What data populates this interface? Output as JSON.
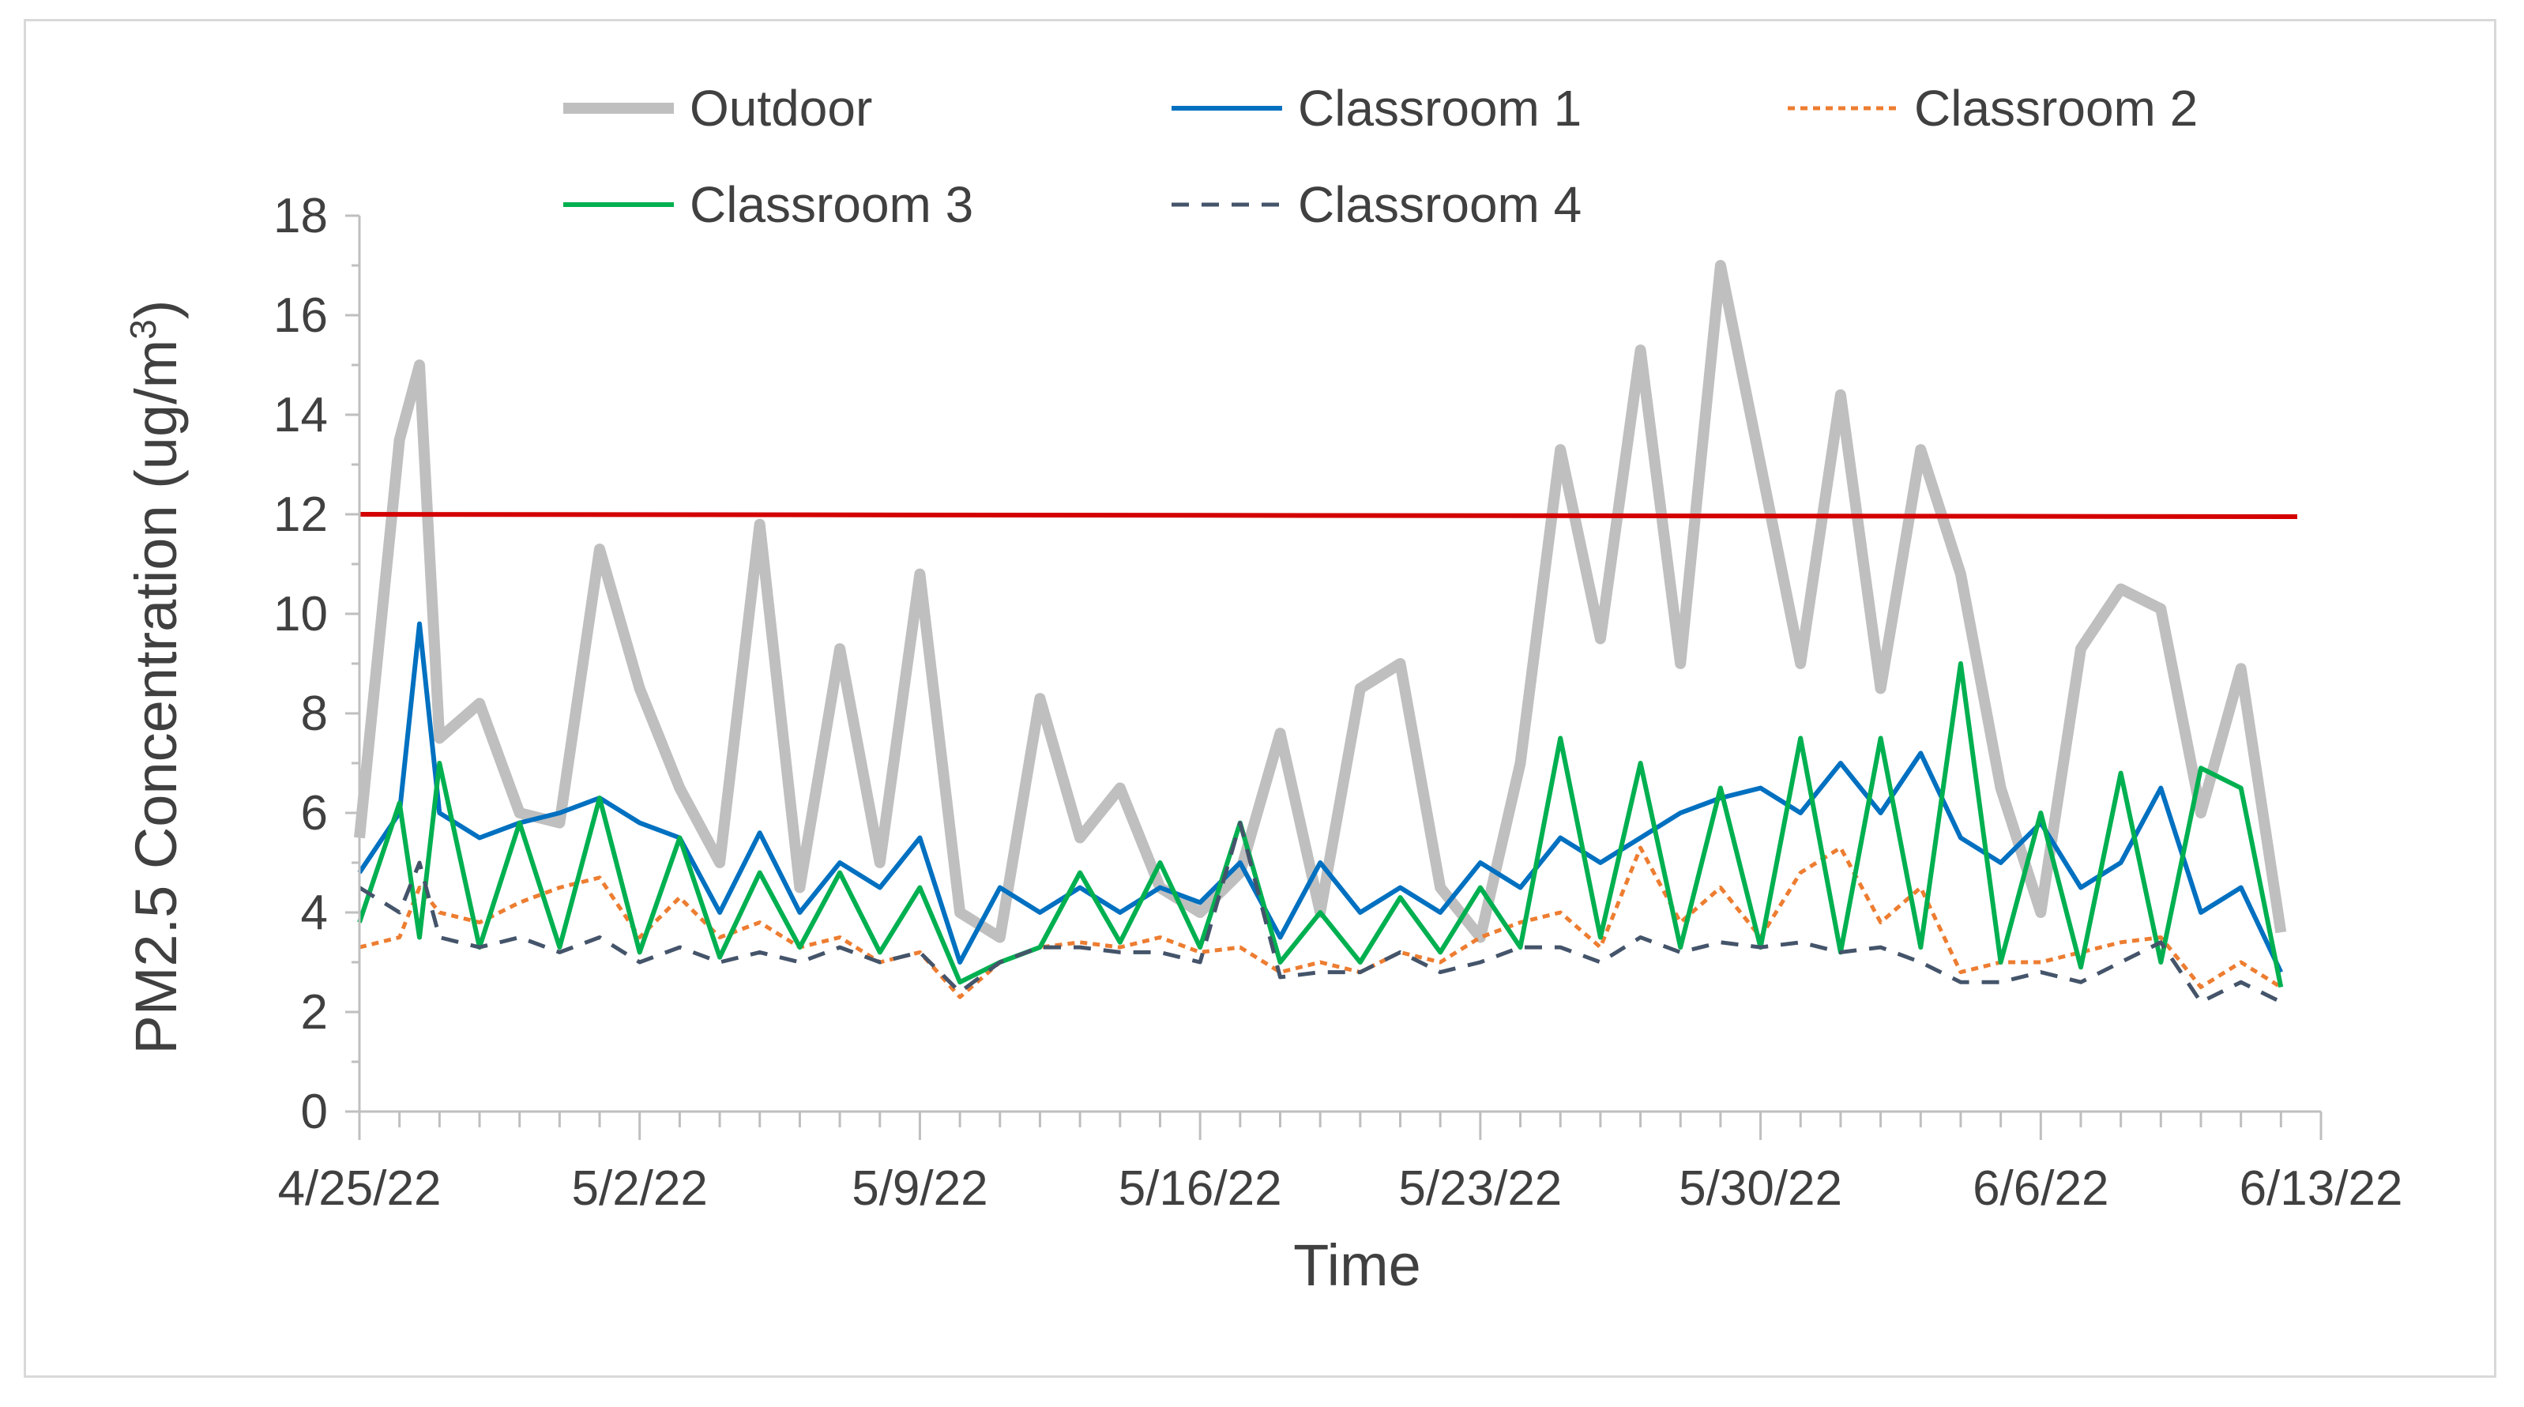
{
  "chart_data": {
    "type": "line",
    "xlabel": "Time",
    "ylabel": "PM2.5 Concentration (ug/m",
    "ylabel_superscript": "3",
    "ylabel_suffix": ")",
    "xlim": [
      "2022-04-25",
      "2022-06-13"
    ],
    "ylim": [
      0,
      18
    ],
    "x_ticks": [
      "4/25/22",
      "5/2/22",
      "5/9/22",
      "5/16/22",
      "5/23/22",
      "5/30/22",
      "6/6/22",
      "6/13/22"
    ],
    "y_ticks": [
      0,
      2,
      4,
      6,
      8,
      10,
      12,
      14,
      16,
      18
    ],
    "grid": false,
    "legend_position": "top",
    "reference_line": {
      "y": 12,
      "color": "#d40000"
    },
    "series": [
      {
        "name": "Outdoor",
        "color": "#bfbfbf",
        "style": "solid-thick",
        "points": [
          [
            "2022-04-25",
            5.5
          ],
          [
            "2022-04-26",
            13.5
          ],
          [
            "2022-04-26T12",
            15
          ],
          [
            "2022-04-27",
            7.5
          ],
          [
            "2022-04-28",
            8.2
          ],
          [
            "2022-04-29",
            6.0
          ],
          [
            "2022-04-30",
            5.8
          ],
          [
            "2022-05-01",
            11.3
          ],
          [
            "2022-05-02",
            8.5
          ],
          [
            "2022-05-03",
            6.5
          ],
          [
            "2022-05-04",
            5.0
          ],
          [
            "2022-05-05",
            11.8
          ],
          [
            "2022-05-06",
            4.5
          ],
          [
            "2022-05-07",
            9.3
          ],
          [
            "2022-05-08",
            5.0
          ],
          [
            "2022-05-09",
            10.8
          ],
          [
            "2022-05-10",
            4.0
          ],
          [
            "2022-05-11",
            3.5
          ],
          [
            "2022-05-12",
            8.3
          ],
          [
            "2022-05-13",
            5.5
          ],
          [
            "2022-05-14",
            6.5
          ],
          [
            "2022-05-15",
            4.5
          ],
          [
            "2022-05-16",
            4.0
          ],
          [
            "2022-05-17",
            4.8
          ],
          [
            "2022-05-18",
            7.6
          ],
          [
            "2022-05-19",
            4.0
          ],
          [
            "2022-05-20",
            8.5
          ],
          [
            "2022-05-21",
            9.0
          ],
          [
            "2022-05-22",
            4.5
          ],
          [
            "2022-05-23",
            3.5
          ],
          [
            "2022-05-24",
            7.0
          ],
          [
            "2022-05-25",
            13.3
          ],
          [
            "2022-05-26",
            9.5
          ],
          [
            "2022-05-27",
            15.3
          ],
          [
            "2022-05-28",
            9.0
          ],
          [
            "2022-05-29",
            17.0
          ],
          [
            "2022-05-30",
            13.0
          ],
          [
            "2022-05-31",
            9.0
          ],
          [
            "2022-06-01",
            14.4
          ],
          [
            "2022-06-02",
            8.5
          ],
          [
            "2022-06-03",
            13.3
          ],
          [
            "2022-06-04",
            10.8
          ],
          [
            "2022-06-05",
            6.5
          ],
          [
            "2022-06-06",
            4.0
          ],
          [
            "2022-06-07",
            9.3
          ],
          [
            "2022-06-08",
            10.5
          ],
          [
            "2022-06-09",
            10.1
          ],
          [
            "2022-06-10",
            6.0
          ],
          [
            "2022-06-11",
            8.9
          ],
          [
            "2022-06-12",
            3.6
          ]
        ]
      },
      {
        "name": "Classroom 1",
        "color": "#0070c0",
        "style": "solid",
        "points": [
          [
            "2022-04-25",
            4.8
          ],
          [
            "2022-04-26",
            6.0
          ],
          [
            "2022-04-26T12",
            9.8
          ],
          [
            "2022-04-27",
            6.0
          ],
          [
            "2022-04-28",
            5.5
          ],
          [
            "2022-04-29",
            5.8
          ],
          [
            "2022-04-30",
            6.0
          ],
          [
            "2022-05-01",
            6.3
          ],
          [
            "2022-05-02",
            5.8
          ],
          [
            "2022-05-03",
            5.5
          ],
          [
            "2022-05-04",
            4.0
          ],
          [
            "2022-05-05",
            5.6
          ],
          [
            "2022-05-06",
            4.0
          ],
          [
            "2022-05-07",
            5.0
          ],
          [
            "2022-05-08",
            4.5
          ],
          [
            "2022-05-09",
            5.5
          ],
          [
            "2022-05-10",
            3.0
          ],
          [
            "2022-05-11",
            4.5
          ],
          [
            "2022-05-12",
            4.0
          ],
          [
            "2022-05-13",
            4.5
          ],
          [
            "2022-05-14",
            4.0
          ],
          [
            "2022-05-15",
            4.5
          ],
          [
            "2022-05-16",
            4.2
          ],
          [
            "2022-05-17",
            5.0
          ],
          [
            "2022-05-18",
            3.5
          ],
          [
            "2022-05-19",
            5.0
          ],
          [
            "2022-05-20",
            4.0
          ],
          [
            "2022-05-21",
            4.5
          ],
          [
            "2022-05-22",
            4.0
          ],
          [
            "2022-05-23",
            5.0
          ],
          [
            "2022-05-24",
            4.5
          ],
          [
            "2022-05-25",
            5.5
          ],
          [
            "2022-05-26",
            5.0
          ],
          [
            "2022-05-27",
            5.5
          ],
          [
            "2022-05-28",
            6.0
          ],
          [
            "2022-05-29",
            6.3
          ],
          [
            "2022-05-30",
            6.5
          ],
          [
            "2022-05-31",
            6.0
          ],
          [
            "2022-06-01",
            7.0
          ],
          [
            "2022-06-02",
            6.0
          ],
          [
            "2022-06-03",
            7.2
          ],
          [
            "2022-06-04",
            5.5
          ],
          [
            "2022-06-05",
            5.0
          ],
          [
            "2022-06-06",
            5.8
          ],
          [
            "2022-06-07",
            4.5
          ],
          [
            "2022-06-08",
            5.0
          ],
          [
            "2022-06-09",
            6.5
          ],
          [
            "2022-06-10",
            4.0
          ],
          [
            "2022-06-11",
            4.5
          ],
          [
            "2022-06-12",
            2.8
          ]
        ]
      },
      {
        "name": "Classroom 2",
        "color": "#ed7d31",
        "style": "dotted",
        "points": [
          [
            "2022-04-25",
            3.3
          ],
          [
            "2022-04-26",
            3.5
          ],
          [
            "2022-04-26T12",
            4.5
          ],
          [
            "2022-04-27",
            4.0
          ],
          [
            "2022-04-28",
            3.8
          ],
          [
            "2022-04-29",
            4.2
          ],
          [
            "2022-04-30",
            4.5
          ],
          [
            "2022-05-01",
            4.7
          ],
          [
            "2022-05-02",
            3.5
          ],
          [
            "2022-05-03",
            4.3
          ],
          [
            "2022-05-04",
            3.5
          ],
          [
            "2022-05-05",
            3.8
          ],
          [
            "2022-05-06",
            3.3
          ],
          [
            "2022-05-07",
            3.5
          ],
          [
            "2022-05-08",
            3.0
          ],
          [
            "2022-05-09",
            3.2
          ],
          [
            "2022-05-10",
            2.3
          ],
          [
            "2022-05-11",
            3.0
          ],
          [
            "2022-05-12",
            3.3
          ],
          [
            "2022-05-13",
            3.4
          ],
          [
            "2022-05-14",
            3.3
          ],
          [
            "2022-05-15",
            3.5
          ],
          [
            "2022-05-16",
            3.2
          ],
          [
            "2022-05-17",
            3.3
          ],
          [
            "2022-05-18",
            2.8
          ],
          [
            "2022-05-19",
            3.0
          ],
          [
            "2022-05-20",
            2.8
          ],
          [
            "2022-05-21",
            3.2
          ],
          [
            "2022-05-22",
            3.0
          ],
          [
            "2022-05-23",
            3.5
          ],
          [
            "2022-05-24",
            3.8
          ],
          [
            "2022-05-25",
            4.0
          ],
          [
            "2022-05-26",
            3.3
          ],
          [
            "2022-05-27",
            5.3
          ],
          [
            "2022-05-28",
            3.8
          ],
          [
            "2022-05-29",
            4.5
          ],
          [
            "2022-05-30",
            3.5
          ],
          [
            "2022-05-31",
            4.8
          ],
          [
            "2022-06-01",
            5.3
          ],
          [
            "2022-06-02",
            3.8
          ],
          [
            "2022-06-03",
            4.5
          ],
          [
            "2022-06-04",
            2.8
          ],
          [
            "2022-06-05",
            3.0
          ],
          [
            "2022-06-06",
            3.0
          ],
          [
            "2022-06-07",
            3.2
          ],
          [
            "2022-06-08",
            3.4
          ],
          [
            "2022-06-09",
            3.5
          ],
          [
            "2022-06-10",
            2.5
          ],
          [
            "2022-06-11",
            3.0
          ],
          [
            "2022-06-12",
            2.5
          ]
        ]
      },
      {
        "name": "Classroom 3",
        "color": "#00b050",
        "style": "solid",
        "points": [
          [
            "2022-04-25",
            3.8
          ],
          [
            "2022-04-26",
            6.2
          ],
          [
            "2022-04-26T12",
            3.5
          ],
          [
            "2022-04-27",
            7.0
          ],
          [
            "2022-04-28",
            3.3
          ],
          [
            "2022-04-29",
            5.8
          ],
          [
            "2022-04-30",
            3.3
          ],
          [
            "2022-05-01",
            6.3
          ],
          [
            "2022-05-02",
            3.2
          ],
          [
            "2022-05-03",
            5.5
          ],
          [
            "2022-05-04",
            3.1
          ],
          [
            "2022-05-05",
            4.8
          ],
          [
            "2022-05-06",
            3.3
          ],
          [
            "2022-05-07",
            4.8
          ],
          [
            "2022-05-08",
            3.2
          ],
          [
            "2022-05-09",
            4.5
          ],
          [
            "2022-05-10",
            2.6
          ],
          [
            "2022-05-11",
            3.0
          ],
          [
            "2022-05-12",
            3.3
          ],
          [
            "2022-05-13",
            4.8
          ],
          [
            "2022-05-14",
            3.4
          ],
          [
            "2022-05-15",
            5.0
          ],
          [
            "2022-05-16",
            3.3
          ],
          [
            "2022-05-17",
            5.8
          ],
          [
            "2022-05-18",
            3.0
          ],
          [
            "2022-05-19",
            4.0
          ],
          [
            "2022-05-20",
            3.0
          ],
          [
            "2022-05-21",
            4.3
          ],
          [
            "2022-05-22",
            3.2
          ],
          [
            "2022-05-23",
            4.5
          ],
          [
            "2022-05-24",
            3.3
          ],
          [
            "2022-05-25",
            7.5
          ],
          [
            "2022-05-26",
            3.5
          ],
          [
            "2022-05-27",
            7.0
          ],
          [
            "2022-05-28",
            3.3
          ],
          [
            "2022-05-29",
            6.5
          ],
          [
            "2022-05-30",
            3.3
          ],
          [
            "2022-05-31",
            7.5
          ],
          [
            "2022-06-01",
            3.2
          ],
          [
            "2022-06-02",
            7.5
          ],
          [
            "2022-06-03",
            3.3
          ],
          [
            "2022-06-04",
            9.0
          ],
          [
            "2022-06-05",
            3.0
          ],
          [
            "2022-06-06",
            6.0
          ],
          [
            "2022-06-07",
            2.9
          ],
          [
            "2022-06-08",
            6.8
          ],
          [
            "2022-06-09",
            3.0
          ],
          [
            "2022-06-10",
            6.9
          ],
          [
            "2022-06-11",
            6.5
          ],
          [
            "2022-06-12",
            2.5
          ]
        ]
      },
      {
        "name": "Classroom 4",
        "color": "#44546a",
        "style": "dashed",
        "points": [
          [
            "2022-04-25",
            4.5
          ],
          [
            "2022-04-26",
            4.0
          ],
          [
            "2022-04-26T12",
            5.0
          ],
          [
            "2022-04-27",
            3.5
          ],
          [
            "2022-04-28",
            3.3
          ],
          [
            "2022-04-29",
            3.5
          ],
          [
            "2022-04-30",
            3.2
          ],
          [
            "2022-05-01",
            3.5
          ],
          [
            "2022-05-02",
            3.0
          ],
          [
            "2022-05-03",
            3.3
          ],
          [
            "2022-05-04",
            3.0
          ],
          [
            "2022-05-05",
            3.2
          ],
          [
            "2022-05-06",
            3.0
          ],
          [
            "2022-05-07",
            3.3
          ],
          [
            "2022-05-08",
            3.0
          ],
          [
            "2022-05-09",
            3.2
          ],
          [
            "2022-05-10",
            2.4
          ],
          [
            "2022-05-11",
            3.0
          ],
          [
            "2022-05-12",
            3.3
          ],
          [
            "2022-05-13",
            3.3
          ],
          [
            "2022-05-14",
            3.2
          ],
          [
            "2022-05-15",
            3.2
          ],
          [
            "2022-05-16",
            3.0
          ],
          [
            "2022-05-17",
            5.8
          ],
          [
            "2022-05-18",
            2.7
          ],
          [
            "2022-05-19",
            2.8
          ],
          [
            "2022-05-20",
            2.8
          ],
          [
            "2022-05-21",
            3.2
          ],
          [
            "2022-05-22",
            2.8
          ],
          [
            "2022-05-23",
            3.0
          ],
          [
            "2022-05-24",
            3.3
          ],
          [
            "2022-05-25",
            3.3
          ],
          [
            "2022-05-26",
            3.0
          ],
          [
            "2022-05-27",
            3.5
          ],
          [
            "2022-05-28",
            3.2
          ],
          [
            "2022-05-29",
            3.4
          ],
          [
            "2022-05-30",
            3.3
          ],
          [
            "2022-05-31",
            3.4
          ],
          [
            "2022-06-01",
            3.2
          ],
          [
            "2022-06-02",
            3.3
          ],
          [
            "2022-06-03",
            3.0
          ],
          [
            "2022-06-04",
            2.6
          ],
          [
            "2022-06-05",
            2.6
          ],
          [
            "2022-06-06",
            2.8
          ],
          [
            "2022-06-07",
            2.6
          ],
          [
            "2022-06-08",
            3.0
          ],
          [
            "2022-06-09",
            3.4
          ],
          [
            "2022-06-10",
            2.2
          ],
          [
            "2022-06-11",
            2.6
          ],
          [
            "2022-06-12",
            2.2
          ]
        ]
      }
    ]
  }
}
